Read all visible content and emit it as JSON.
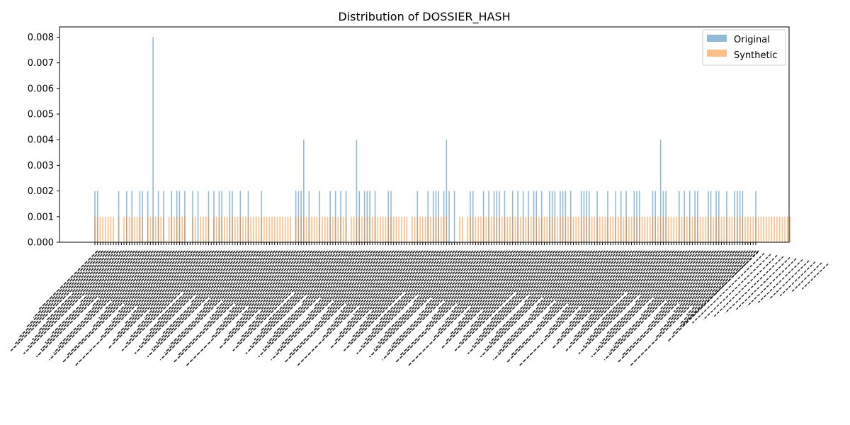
{
  "chart_data": {
    "type": "bar",
    "title": "Distribution of DOSSIER_HASH",
    "xlabel": "",
    "ylabel": "",
    "ylim": [
      0,
      0.0084
    ],
    "yticks": [
      "0.000",
      "0.001",
      "0.002",
      "0.003",
      "0.004",
      "0.005",
      "0.006",
      "0.007",
      "0.008"
    ],
    "ytick_values": [
      0,
      0.001,
      0.002,
      0.003,
      0.004,
      0.005,
      0.006,
      0.007,
      0.008
    ],
    "legend_position": "top-right",
    "grid": false,
    "series": [
      {
        "name": "Original",
        "color": "#1f77b4",
        "opacity": 0.5,
        "values": [
          0.002,
          0.002,
          0,
          0,
          0,
          0,
          0,
          0,
          0,
          0.002,
          0,
          0,
          0.002,
          0,
          0.002,
          0,
          0,
          0.002,
          0.002,
          0,
          0.002,
          0,
          0.008,
          0,
          0.002,
          0,
          0.002,
          0,
          0,
          0.002,
          0,
          0.002,
          0.002,
          0,
          0.002,
          0,
          0,
          0.002,
          0,
          0.002,
          0,
          0,
          0,
          0.002,
          0,
          0.002,
          0,
          0.002,
          0.002,
          0,
          0,
          0.002,
          0.002,
          0,
          0,
          0.002,
          0,
          0,
          0.002,
          0,
          0,
          0,
          0,
          0.002,
          0,
          0,
          0,
          0,
          0,
          0,
          0,
          0,
          0,
          0,
          0,
          0,
          0.002,
          0.002,
          0.002,
          0.004,
          0,
          0.002,
          0,
          0,
          0,
          0.002,
          0,
          0,
          0,
          0.002,
          0,
          0.002,
          0,
          0.002,
          0,
          0.002,
          0,
          0,
          0,
          0.004,
          0.002,
          0,
          0.002,
          0.002,
          0.002,
          0,
          0.002,
          0,
          0,
          0,
          0,
          0.002,
          0.002,
          0,
          0,
          0,
          0,
          0,
          0,
          0,
          0,
          0,
          0.002,
          0,
          0,
          0,
          0.002,
          0,
          0.002,
          0.002,
          0.002,
          0,
          0.002,
          0.004,
          0.002,
          0,
          0.002,
          0,
          0,
          0,
          0,
          0,
          0.002,
          0.002,
          0,
          0,
          0,
          0.002,
          0,
          0.002,
          0,
          0.002,
          0.002,
          0.002,
          0,
          0.002,
          0,
          0,
          0.002,
          0,
          0.002,
          0,
          0.002,
          0,
          0.002,
          0,
          0.002,
          0.002,
          0,
          0.002,
          0,
          0,
          0.002,
          0.002,
          0.002,
          0,
          0.002,
          0.002,
          0.002,
          0,
          0.002,
          0,
          0,
          0,
          0.002,
          0.002,
          0.002,
          0.002,
          0,
          0,
          0.002,
          0,
          0,
          0,
          0.002,
          0,
          0,
          0.002,
          0,
          0.002,
          0,
          0.002,
          0,
          0,
          0.002,
          0.002,
          0.002,
          0,
          0,
          0,
          0,
          0.002,
          0.002,
          0,
          0.004,
          0.002,
          0.002,
          0,
          0,
          0,
          0,
          0.002,
          0,
          0.002,
          0,
          0.002,
          0,
          0.002,
          0.002,
          0,
          0,
          0,
          0.002,
          0.002,
          0,
          0.002,
          0.002,
          0,
          0,
          0.002,
          0,
          0,
          0.002,
          0.002,
          0.002,
          0.002,
          0,
          0,
          0,
          0,
          0.002
        ],
        "values_note_removed": true
      },
      {
        "name": "Synthetic",
        "color": "#ff7f0e",
        "opacity": 0.5,
        "values": [
          0.001,
          0.001,
          0.001,
          0.001,
          0.001,
          0.001,
          0.001,
          0.001,
          0,
          0.001,
          0,
          0.001,
          0.001,
          0.001,
          0.001,
          0.001,
          0.001,
          0.001,
          0.001,
          0,
          0.001,
          0.001,
          0.001,
          0.001,
          0.001,
          0.001,
          0.001,
          0,
          0.001,
          0.001,
          0.001,
          0.001,
          0.001,
          0.001,
          0.001,
          0,
          0,
          0.001,
          0.001,
          0,
          0.001,
          0.001,
          0.001,
          0.001,
          0,
          0.001,
          0.001,
          0.001,
          0.001,
          0.001,
          0.001,
          0.001,
          0.001,
          0.001,
          0.001,
          0.001,
          0.001,
          0.001,
          0.001,
          0.001,
          0.001,
          0.001,
          0.001,
          0.001,
          0.001,
          0.001,
          0.001,
          0.001,
          0.001,
          0.001,
          0.001,
          0.001,
          0.001,
          0.001,
          0.001,
          0,
          0.001,
          0.001,
          0.001,
          0.001,
          0.001,
          0.001,
          0.001,
          0.001,
          0.001,
          0.001,
          0.001,
          0.001,
          0.001,
          0.001,
          0.001,
          0.001,
          0.001,
          0.001,
          0.001,
          0.001,
          0,
          0.001,
          0.001,
          0.001,
          0.001,
          0.001,
          0.001,
          0.001,
          0.001,
          0.001,
          0.001,
          0.001,
          0.001,
          0.001,
          0.001,
          0.001,
          0.001,
          0.001,
          0.001,
          0.001,
          0.001,
          0.001,
          0.001,
          0,
          0.001,
          0.001,
          0.001,
          0.001,
          0.001,
          0.001,
          0.001,
          0.001,
          0.001,
          0.001,
          0.001,
          0.001,
          0.001,
          0.001,
          0,
          0,
          0,
          0,
          0.001,
          0.001,
          0,
          0.001,
          0.001,
          0.001,
          0.001,
          0.001,
          0.001,
          0.001,
          0.001,
          0.001,
          0.001,
          0.001,
          0.001,
          0.001,
          0.001,
          0.001,
          0.001,
          0.001,
          0.001,
          0.001,
          0.001,
          0.001,
          0.001,
          0.001,
          0.001,
          0.001,
          0.001,
          0.001,
          0.001,
          0.001,
          0.001,
          0.001,
          0.001,
          0.001,
          0.001,
          0.001,
          0.001,
          0.001,
          0.001,
          0.001,
          0.001,
          0.001,
          0.001,
          0.001,
          0.001,
          0.001,
          0.001,
          0.001,
          0.001,
          0.001,
          0.001,
          0.001,
          0.001,
          0.001,
          0.001,
          0.001,
          0.001,
          0.001,
          0.001,
          0.001,
          0.001,
          0.001,
          0.001,
          0.001,
          0.001,
          0.001,
          0.001,
          0.001,
          0.001,
          0.001,
          0.001,
          0.001,
          0.001,
          0.001,
          0.001,
          0.001,
          0.001,
          0.001,
          0.001,
          0.001,
          0.001,
          0.001,
          0.001,
          0.001,
          0.001,
          0.001,
          0.001,
          0.001,
          0.001,
          0.001,
          0.001,
          0.001,
          0.001,
          0.001,
          0.001,
          0.001,
          0.001,
          0.001,
          0.001,
          0.001,
          0.001,
          0.001,
          0.001,
          0.001,
          0.001,
          0.001,
          0.001,
          0.001,
          0.001,
          0.001,
          0.001,
          0.001,
          0.001,
          0.001,
          0.001,
          0.001,
          0.001,
          0.001,
          0.001,
          0.001,
          0.001,
          0.001,
          0.001,
          0.001
        ]
      }
    ]
  }
}
